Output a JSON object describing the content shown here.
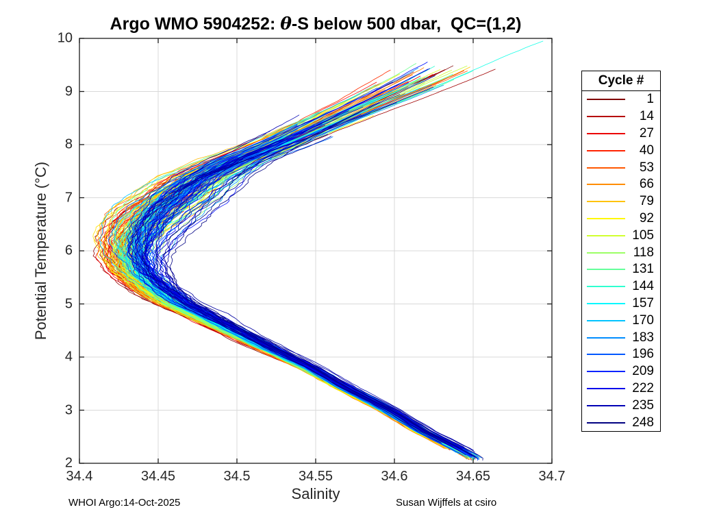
{
  "header": {
    "title_pre": "Argo WMO 5904252: ",
    "title_theta": "θ",
    "title_post": "-S below 500 dbar,  QC=(1,2)"
  },
  "footer": {
    "left": "WHOI Argo:14-Oct-2025",
    "right": "Susan Wijffels at csiro"
  },
  "chart_data": {
    "type": "line",
    "title": "Argo WMO 5904252: θ-S below 500 dbar,  QC=(1,2)",
    "xlabel": "Salinity",
    "ylabel": "Potential Temperature (°C)",
    "xlim": [
      34.4,
      34.7
    ],
    "ylim": [
      2,
      10
    ],
    "xtick_values": [
      34.4,
      34.45,
      34.5,
      34.55,
      34.6,
      34.65,
      34.7
    ],
    "xtick_labels": [
      "34.4",
      "34.45",
      "34.5",
      "34.55",
      "34.6",
      "34.65",
      "34.7"
    ],
    "ytick_values": [
      2,
      3,
      4,
      5,
      6,
      7,
      8,
      9,
      10
    ],
    "ytick_labels": [
      "2",
      "3",
      "4",
      "5",
      "6",
      "7",
      "8",
      "9",
      "10"
    ],
    "grid": true,
    "grid_color": "#d9d9d9",
    "axis_color": "#1a1a1a",
    "n_cycles": 248,
    "colormap": "jet reversed (cycle 1 = dark red, cycle 248 = dark navy)",
    "legend": {
      "title": "Cycle #",
      "position": "right-outside",
      "entries": [
        {
          "label": "1",
          "color": "#800000"
        },
        {
          "label": "14",
          "color": "#B50000"
        },
        {
          "label": "27",
          "color": "#EB0000"
        },
        {
          "label": "40",
          "color": "#FF2200"
        },
        {
          "label": "53",
          "color": "#FF5700"
        },
        {
          "label": "66",
          "color": "#FF8D00"
        },
        {
          "label": "79",
          "color": "#FFC300"
        },
        {
          "label": "92",
          "color": "#FFF800"
        },
        {
          "label": "105",
          "color": "#D0FF2F"
        },
        {
          "label": "118",
          "color": "#9BFF65"
        },
        {
          "label": "131",
          "color": "#65FF9B"
        },
        {
          "label": "144",
          "color": "#2FFFD0"
        },
        {
          "label": "157",
          "color": "#00F8FF"
        },
        {
          "label": "170",
          "color": "#00C3FF"
        },
        {
          "label": "183",
          "color": "#008DFF"
        },
        {
          "label": "196",
          "color": "#0057FF"
        },
        {
          "label": "209",
          "color": "#0022FF"
        },
        {
          "label": "222",
          "color": "#0000EB"
        },
        {
          "label": "235",
          "color": "#0000B5"
        },
        {
          "label": "248",
          "color": "#000080"
        }
      ]
    },
    "median_profile": {
      "theta": [
        2.1,
        2.3,
        2.6,
        3.0,
        3.4,
        3.8,
        4.2,
        4.6,
        5.0,
        5.3,
        5.6,
        5.9,
        6.2,
        6.5,
        6.8,
        7.1,
        7.4,
        7.7,
        8.0,
        8.3,
        8.6,
        8.9,
        9.2,
        9.5,
        9.8,
        10.0
      ],
      "salinity": [
        34.652,
        34.64,
        34.62,
        34.598,
        34.572,
        34.549,
        34.522,
        34.497,
        34.472,
        34.458,
        34.448,
        34.444,
        34.445,
        34.45,
        34.458,
        34.47,
        34.483,
        34.503,
        34.528,
        34.55,
        34.572,
        34.595,
        34.617,
        34.638,
        34.66,
        34.675
      ]
    },
    "features": {
      "salinity_minimum": {
        "theta": 5.7,
        "salinity_early_cycles": 34.425,
        "salinity_late_cycles": 34.444
      },
      "deep_tail_end": {
        "theta": 2.1,
        "salinity": 34.652
      },
      "upper_fan": {
        "theta_range": [
          7.8,
          9.6
        ],
        "salinity_range": [
          34.49,
          34.66
        ]
      },
      "outlier_line": {
        "color_group": "turquoise (~cycle 150)",
        "end_theta": 9.97,
        "end_salinity": 34.693
      },
      "trend": "early cycles (dark red→orange→yellow) form the fresh outer edge of the bend and the cold lower edge of the deep tail; recent cycles (blues) lie on top, saltier by ~0.02 at the minimum"
    },
    "rendering": {
      "seed": 987654321,
      "profiles": 220,
      "theta_step": 0.045
    }
  }
}
